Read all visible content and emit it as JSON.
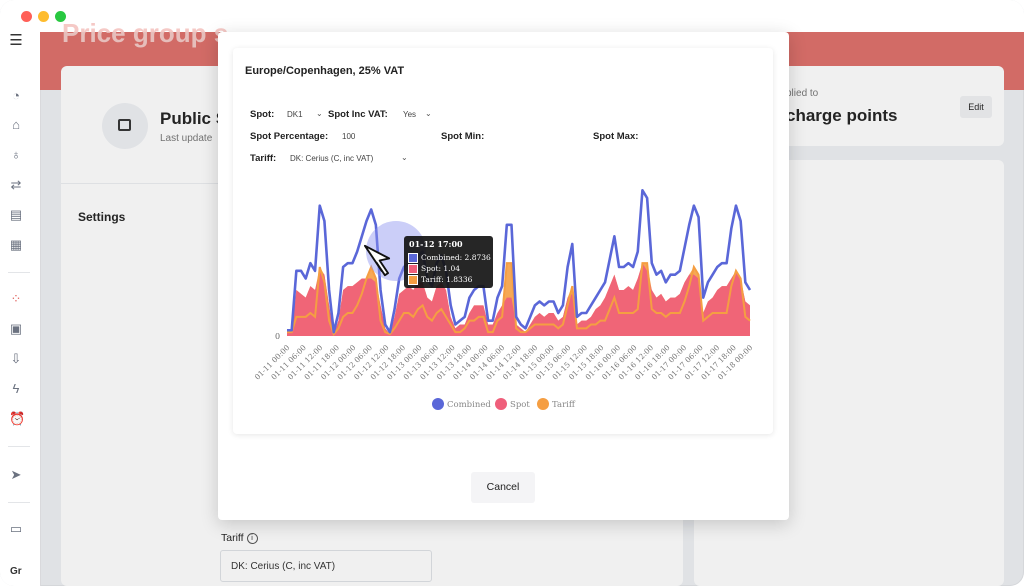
{
  "banner": {
    "title": "Price group s"
  },
  "background": {
    "card1": {
      "title": "Public S",
      "subtitle": "Last update"
    },
    "settings_label": "Settings",
    "applied_to": "plied to",
    "charge_points": "charge points",
    "edit_label": "Edit",
    "tariff_label": "Tariff",
    "tariff_value": "DK: Cerius (C, inc VAT)",
    "bottom_left_text": "Gr"
  },
  "modal": {
    "timezone_title": "Europe/Copenhagen, 25% VAT",
    "spot_label": "Spot",
    "spot_value": "DK1",
    "spot_inc_vat_label": "Spot Inc VAT",
    "spot_inc_vat_value": "Yes",
    "spot_percentage_label": "Spot Percentage",
    "spot_percentage_value": "100",
    "spot_min_label": "Spot Min",
    "spot_max_label": "Spot Max",
    "tariff_label": "Tariff",
    "tariff_value": "DK: Cerius (C, inc VAT)",
    "cancel_label": "Cancel"
  },
  "chart_data": {
    "type": "area",
    "title": "",
    "ylabel": "",
    "xlabel": "",
    "y_ticks": [
      "0"
    ],
    "ylim": [
      0,
      3.6
    ],
    "x_tick_labels": [
      "01-11 00:00",
      "01-11 06:00",
      "01-11 12:00",
      "01-11 18:00",
      "01-12 00:00",
      "01-12 06:00",
      "01-12 12:00",
      "01-12 18:00",
      "01-13 00:00",
      "01-13 06:00",
      "01-13 12:00",
      "01-13 18:00",
      "01-14 00:00",
      "01-14 06:00",
      "01-14 12:00",
      "01-14 18:00",
      "01-15 00:00",
      "01-15 06:00",
      "01-15 12:00",
      "01-15 18:00",
      "01-16 00:00",
      "01-16 06:00",
      "01-16 12:00",
      "01-16 18:00",
      "01-17 00:00",
      "01-17 06:00",
      "01-17 12:00",
      "01-17 18:00",
      "01-18 00:00"
    ],
    "legend": [
      "Combined",
      "Spot",
      "Tariff"
    ],
    "legend_position": "bottom",
    "colors": {
      "Combined": "#5a67d8",
      "Spot": "#ef5f7b",
      "Tariff": "#f59e42"
    },
    "series": [
      {
        "name": "Combined",
        "values": [
          0.15,
          0.15,
          1.7,
          1.7,
          1.5,
          1.9,
          1.7,
          3.4,
          3.0,
          1.2,
          0.1,
          0.6,
          1.8,
          1.9,
          1.9,
          2.2,
          2.6,
          3.0,
          3.3,
          2.9,
          1.2,
          0.3,
          0.1,
          0.7,
          1.5,
          1.8,
          1.9,
          1.7,
          2.1,
          2.2,
          1.5,
          1.3,
          1.9,
          2.1,
          1.7,
          0.8,
          0.3,
          0.4,
          0.5,
          1.0,
          1.2,
          1.3,
          1.3,
          0.4,
          0.4,
          1.0,
          1.3,
          2.9,
          2.9,
          0.5,
          0.3,
          0.2,
          0.5,
          0.8,
          0.9,
          0.8,
          0.9,
          0.9,
          0.6,
          0.8,
          1.8,
          2.4,
          0.5,
          0.6,
          0.6,
          0.8,
          1.0,
          1.2,
          1.4,
          2.0,
          2.6,
          1.8,
          1.8,
          1.9,
          1.8,
          2.2,
          3.8,
          3.6,
          1.9,
          1.6,
          1.7,
          1.4,
          1.6,
          1.6,
          1.7,
          2.3,
          2.9,
          3.4,
          3.1,
          1.0,
          1.4,
          1.6,
          1.8,
          1.9,
          1.9,
          2.8,
          3.4,
          3.0,
          1.4,
          1.2
        ]
      },
      {
        "name": "Spot",
        "values": [
          0.1,
          0.1,
          1.2,
          1.1,
          1.0,
          1.3,
          1.2,
          1.7,
          1.6,
          0.8,
          0.05,
          0.4,
          1.2,
          1.3,
          1.3,
          1.4,
          1.5,
          1.5,
          1.5,
          1.4,
          0.8,
          0.2,
          0.05,
          0.5,
          1.1,
          1.2,
          1.3,
          1.2,
          1.4,
          1.4,
          1.0,
          0.9,
          1.3,
          1.4,
          1.2,
          0.5,
          0.2,
          0.3,
          0.3,
          0.6,
          0.8,
          0.8,
          0.8,
          0.3,
          0.3,
          0.6,
          0.8,
          1.0,
          1.0,
          0.3,
          0.2,
          0.1,
          0.3,
          0.5,
          0.6,
          0.5,
          0.6,
          0.6,
          0.4,
          0.5,
          1.0,
          1.1,
          0.3,
          0.4,
          0.4,
          0.5,
          0.7,
          0.8,
          1.0,
          1.3,
          1.6,
          1.2,
          1.2,
          1.3,
          1.2,
          1.5,
          1.9,
          1.7,
          1.2,
          1.0,
          1.1,
          0.9,
          1.0,
          1.0,
          1.1,
          1.4,
          1.6,
          1.6,
          1.5,
          0.6,
          0.9,
          1.0,
          1.2,
          1.3,
          1.3,
          1.5,
          1.7,
          1.5,
          0.9,
          0.8
        ]
      },
      {
        "name": "Tariff",
        "values": [
          0.1,
          0.1,
          0.5,
          0.5,
          0.5,
          0.6,
          0.5,
          1.8,
          1.4,
          0.4,
          0.05,
          0.2,
          0.5,
          0.6,
          0.6,
          0.8,
          1.1,
          1.5,
          1.8,
          1.5,
          0.4,
          0.1,
          0.05,
          0.2,
          0.4,
          0.6,
          0.6,
          0.5,
          0.7,
          0.8,
          0.5,
          0.4,
          0.6,
          0.7,
          0.5,
          0.3,
          0.1,
          0.1,
          0.2,
          0.4,
          0.4,
          0.5,
          0.5,
          0.1,
          0.1,
          0.4,
          0.5,
          1.9,
          1.9,
          0.2,
          0.1,
          0.1,
          0.2,
          0.3,
          0.3,
          0.3,
          0.3,
          0.3,
          0.2,
          0.3,
          0.8,
          1.3,
          0.2,
          0.2,
          0.2,
          0.3,
          0.3,
          0.4,
          0.4,
          0.7,
          1.0,
          0.6,
          0.6,
          0.6,
          0.6,
          0.7,
          1.9,
          1.9,
          0.7,
          0.6,
          0.6,
          0.5,
          0.6,
          0.6,
          0.6,
          0.9,
          1.3,
          1.8,
          1.6,
          0.4,
          0.5,
          0.6,
          0.6,
          0.6,
          0.6,
          1.3,
          1.7,
          1.5,
          0.5,
          0.4
        ]
      }
    ],
    "tooltip": {
      "title": "01-12 17:00",
      "rows": [
        {
          "name": "Combined",
          "value": "2.8736",
          "text": "Combined: 2.8736"
        },
        {
          "name": "Spot",
          "value": "1.04",
          "text": "Spot: 1.04"
        },
        {
          "name": "Tariff",
          "value": "1.8336",
          "text": "Tariff: 1.8336"
        }
      ]
    }
  }
}
